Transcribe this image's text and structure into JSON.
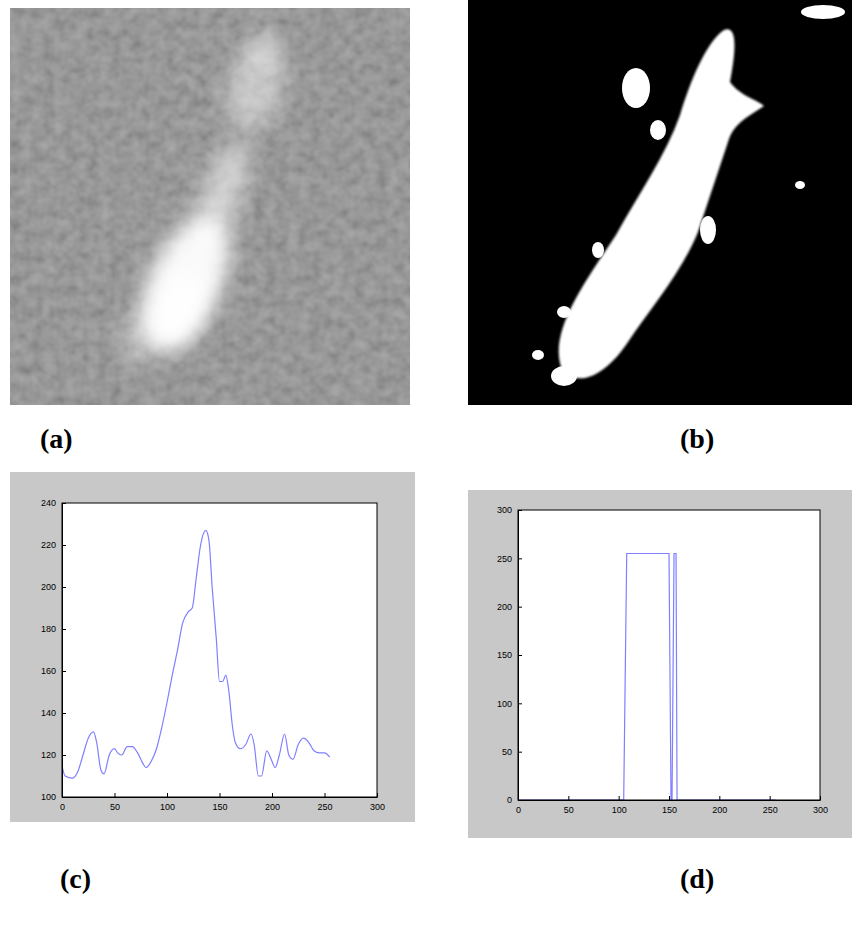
{
  "panel_labels": [
    "(a)",
    "(b)",
    "(c)",
    "(d)"
  ],
  "chart_data": [
    {
      "type": "line",
      "color": "#7f7fff",
      "x": [
        0,
        3,
        10,
        15,
        20,
        25,
        30,
        33,
        37,
        40,
        45,
        50,
        53,
        57,
        62,
        67,
        72,
        77,
        80,
        85,
        90,
        95,
        100,
        105,
        110,
        115,
        120,
        124,
        128,
        132,
        137,
        140,
        143,
        147,
        150,
        153,
        156,
        159,
        162,
        165,
        170,
        175,
        180,
        183,
        187,
        190,
        195,
        200,
        203,
        207,
        212,
        216,
        220,
        225,
        230,
        235,
        240,
        245,
        250,
        255
      ],
      "values": [
        115,
        110,
        109,
        112,
        120,
        128,
        131,
        126,
        113,
        111,
        120,
        123,
        121,
        120,
        124,
        124,
        121,
        116,
        114,
        117,
        123,
        133,
        145,
        158,
        170,
        183,
        188,
        190,
        205,
        220,
        227,
        222,
        200,
        175,
        155,
        155,
        158,
        150,
        135,
        126,
        123,
        125,
        130,
        125,
        110,
        110,
        122,
        117,
        114,
        120,
        130,
        120,
        118,
        125,
        128,
        126,
        122,
        121,
        121,
        119
      ],
      "xlim": [
        0,
        300
      ],
      "xticks": [
        0,
        50,
        100,
        150,
        200,
        250,
        300
      ],
      "ylim": [
        100,
        240
      ],
      "yticks": [
        100,
        120,
        140,
        160,
        180,
        200,
        220,
        240
      ]
    },
    {
      "type": "line",
      "color": "#7f7fff",
      "x": [
        0,
        105,
        108,
        150,
        152,
        153,
        155,
        157,
        158,
        256
      ],
      "values": [
        0,
        0,
        255,
        255,
        0,
        0,
        255,
        255,
        0,
        0
      ],
      "xlim": [
        0,
        300
      ],
      "xticks": [
        0,
        50,
        100,
        150,
        200,
        250,
        300
      ],
      "ylim": [
        0,
        300
      ],
      "yticks": [
        0,
        50,
        100,
        150,
        200,
        250,
        300
      ]
    }
  ]
}
